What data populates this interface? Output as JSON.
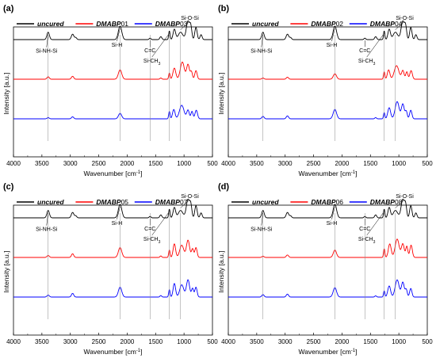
{
  "chart_data": [
    {
      "type": "line",
      "panel_label": "(a)",
      "xlabel": "Wavenumber [cm",
      "xlabel_sup": "-1",
      "xlabel_tail": "]",
      "ylabel": "Intensity [a.u.]",
      "xlim": [
        4000,
        500
      ],
      "x_reversed": true,
      "y_ticks_shown": false,
      "grid": false,
      "xticks": [
        4000,
        3500,
        3000,
        2500,
        2000,
        1500,
        1000,
        500
      ],
      "legend": [
        {
          "label_bold": "uncured",
          "label_rest": "",
          "color": "#000000"
        },
        {
          "label_bold": "DMABP",
          "label_rest": "01",
          "color": "#ff0000"
        },
        {
          "label_bold": "DMABP",
          "label_rest": "03",
          "color": "#0000ff"
        }
      ],
      "legend_position": "top",
      "series": [
        {
          "name": "uncured",
          "color": "#000000",
          "offset": 2.0,
          "spectrum": "uncured"
        },
        {
          "name": "DMABP01",
          "color": "#ff0000",
          "offset": 1.0,
          "spectrum": "cured_a"
        },
        {
          "name": "DMABP03",
          "color": "#0000ff",
          "offset": 0.0,
          "spectrum": "cured_b"
        }
      ],
      "annotations": [
        {
          "text": "Si-NH-Si",
          "x": 3390
        },
        {
          "text": "Si-H",
          "x": 2125
        },
        {
          "text": "C=C",
          "x": 1598
        },
        {
          "text": "Si-CH3",
          "x": 1258
        },
        {
          "text": "Si-O-Si",
          "x": 1065
        }
      ],
      "reference_lines": [
        3390,
        2125,
        1598,
        1258,
        1065
      ]
    },
    {
      "type": "line",
      "panel_label": "(b)",
      "xlabel": "Wavenumber [cm",
      "xlabel_sup": "-1",
      "xlabel_tail": "]",
      "ylabel": "Intensity [a.u.]",
      "xlim": [
        4000,
        500
      ],
      "x_reversed": true,
      "y_ticks_shown": false,
      "grid": false,
      "xticks": [
        4000,
        3500,
        3000,
        2500,
        2000,
        1500,
        1000,
        500
      ],
      "legend": [
        {
          "label_bold": "uncured",
          "label_rest": "",
          "color": "#000000"
        },
        {
          "label_bold": "DMABP",
          "label_rest": "02",
          "color": "#ff0000"
        },
        {
          "label_bold": "DMABP",
          "label_rest": "04",
          "color": "#0000ff"
        }
      ],
      "legend_position": "top",
      "series": [
        {
          "name": "uncured",
          "color": "#000000",
          "offset": 2.0,
          "spectrum": "uncured"
        },
        {
          "name": "DMABP02",
          "color": "#ff0000",
          "offset": 1.0,
          "spectrum": "cured_b"
        },
        {
          "name": "DMABP04",
          "color": "#0000ff",
          "offset": 0.0,
          "spectrum": "cured_a"
        }
      ],
      "annotations": [
        {
          "text": "Si-NH-Si",
          "x": 3390
        },
        {
          "text": "Si-H",
          "x": 2125
        },
        {
          "text": "C=C",
          "x": 1598
        },
        {
          "text": "Si-CH3",
          "x": 1258
        },
        {
          "text": "Si-O-Si",
          "x": 1065
        }
      ],
      "reference_lines": [
        3390,
        2125,
        1258,
        1065
      ]
    },
    {
      "type": "line",
      "panel_label": "(c)",
      "xlabel": "Wavenumber [cm",
      "xlabel_sup": "-1",
      "xlabel_tail": "]",
      "ylabel": "Intensity [a.u.]",
      "xlim": [
        4000,
        500
      ],
      "x_reversed": true,
      "y_ticks_shown": false,
      "grid": false,
      "xticks": [
        4000,
        3500,
        3000,
        2500,
        2000,
        1500,
        1000,
        500
      ],
      "legend": [
        {
          "label_bold": "uncured",
          "label_rest": "",
          "color": "#000000"
        },
        {
          "label_bold": "DMABP",
          "label_rest": "05",
          "color": "#ff0000"
        },
        {
          "label_bold": "DMABP",
          "label_rest": "07",
          "color": "#0000ff"
        }
      ],
      "legend_position": "top",
      "series": [
        {
          "name": "uncured",
          "color": "#000000",
          "offset": 2.0,
          "spectrum": "uncured"
        },
        {
          "name": "DMABP05",
          "color": "#ff0000",
          "offset": 1.0,
          "spectrum": "cured_c"
        },
        {
          "name": "DMABP07",
          "color": "#0000ff",
          "offset": 0.0,
          "spectrum": "cured_c"
        }
      ],
      "annotations": [
        {
          "text": "Si-NH-Si",
          "x": 3390
        },
        {
          "text": "Si-H",
          "x": 2125
        },
        {
          "text": "C=C",
          "x": 1598
        },
        {
          "text": "Si-CH3",
          "x": 1258
        },
        {
          "text": "Si-O-Si",
          "x": 1065
        }
      ],
      "reference_lines": [
        3390,
        2125,
        1598,
        1258,
        1065
      ]
    },
    {
      "type": "line",
      "panel_label": "(d)",
      "xlabel": "Wavenumber [cm",
      "xlabel_sup": "-1",
      "xlabel_tail": "]",
      "ylabel": "Intensity [a.u.]",
      "xlim": [
        4000,
        500
      ],
      "x_reversed": true,
      "y_ticks_shown": false,
      "grid": false,
      "xticks": [
        4000,
        3500,
        3000,
        2500,
        2000,
        1500,
        1000,
        500
      ],
      "legend": [
        {
          "label_bold": "uncured",
          "label_rest": "",
          "color": "#000000"
        },
        {
          "label_bold": "DMABP",
          "label_rest": "06",
          "color": "#ff0000"
        },
        {
          "label_bold": "DMABP",
          "label_rest": "08",
          "color": "#0000ff"
        }
      ],
      "legend_position": "top",
      "series": [
        {
          "name": "uncured",
          "color": "#000000",
          "offset": 2.0,
          "spectrum": "uncured"
        },
        {
          "name": "DMABP06",
          "color": "#ff0000",
          "offset": 1.0,
          "spectrum": "cured_d"
        },
        {
          "name": "DMABP08",
          "color": "#0000ff",
          "offset": 0.0,
          "spectrum": "cured_a"
        }
      ],
      "annotations": [
        {
          "text": "Si-NH-Si",
          "x": 3390
        },
        {
          "text": "Si-H",
          "x": 2125
        },
        {
          "text": "C=C",
          "x": 1598
        },
        {
          "text": "Si-CH3",
          "x": 1258
        },
        {
          "text": "Si-O-Si",
          "x": 1065
        }
      ],
      "reference_lines": [
        3390,
        2125,
        1598,
        1258,
        1065
      ]
    }
  ]
}
